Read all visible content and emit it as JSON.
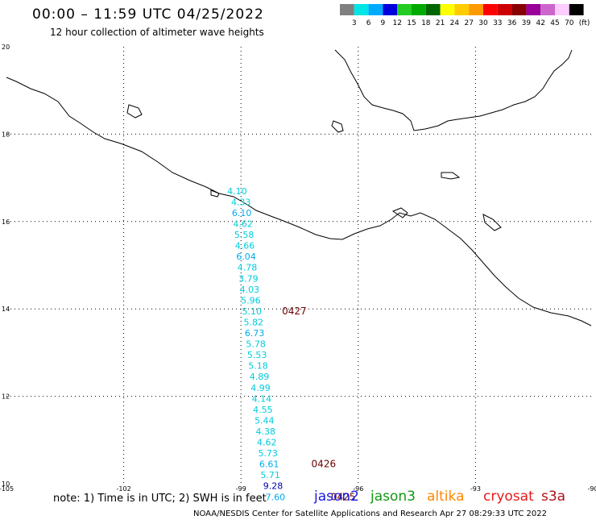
{
  "header": {
    "title": "00:00 – 11:59 UTC 04/25/2022",
    "subtitle": "12 hour collection of altimeter wave heights"
  },
  "colorbar": {
    "labels": [
      "3",
      "6",
      "9",
      "12",
      "15",
      "18",
      "21",
      "24",
      "27",
      "30",
      "33",
      "36",
      "39",
      "42",
      "45",
      "70"
    ],
    "unit": "(ft)",
    "colors": [
      "#808080",
      "#00e5e5",
      "#00aaff",
      "#0000dd",
      "#22cc22",
      "#00aa00",
      "#006600",
      "#ffff00",
      "#ffcc00",
      "#ff9900",
      "#ff0000",
      "#cc0000",
      "#880000",
      "#990099",
      "#cc66cc",
      "#ffccff",
      "#000000"
    ]
  },
  "map": {
    "lon_range": [
      -105,
      -90
    ],
    "lat_range": [
      10,
      20
    ],
    "lon_ticks": [
      {
        "value": -105,
        "label": "-105"
      },
      {
        "value": -102,
        "label": "-102"
      },
      {
        "value": -99,
        "label": "-99"
      },
      {
        "value": -96,
        "label": "-96"
      },
      {
        "value": -93,
        "label": "-93"
      },
      {
        "value": -90,
        "label": "-90"
      }
    ],
    "lat_ticks": [
      {
        "value": 20,
        "label": "20"
      },
      {
        "value": 18,
        "label": "18"
      },
      {
        "value": 16,
        "label": "16"
      },
      {
        "value": 14,
        "label": "14"
      },
      {
        "value": 12,
        "label": "12"
      },
      {
        "value": 10,
        "label": "10"
      }
    ],
    "grid": true,
    "coastline_color": "#000000"
  },
  "observations": [
    {
      "lon": -99.1,
      "lat": 16.7,
      "swh": "4.10"
    },
    {
      "lon": -99.0,
      "lat": 16.45,
      "swh": "4.33"
    },
    {
      "lon": -98.98,
      "lat": 16.2,
      "swh": "6.10"
    },
    {
      "lon": -98.95,
      "lat": 15.95,
      "swh": "4.62"
    },
    {
      "lon": -98.92,
      "lat": 15.7,
      "swh": "5.58"
    },
    {
      "lon": -98.9,
      "lat": 15.45,
      "swh": "4.66"
    },
    {
      "lon": -98.87,
      "lat": 15.2,
      "swh": "6.04"
    },
    {
      "lon": -98.84,
      "lat": 14.95,
      "swh": "4.78"
    },
    {
      "lon": -98.81,
      "lat": 14.7,
      "swh": "3.79"
    },
    {
      "lon": -98.78,
      "lat": 14.45,
      "swh": "4.03"
    },
    {
      "lon": -98.75,
      "lat": 14.2,
      "swh": "5.96"
    },
    {
      "lon": -98.72,
      "lat": 13.95,
      "swh": "5.10"
    },
    {
      "lon": -98.68,
      "lat": 13.7,
      "swh": "5.82"
    },
    {
      "lon": -98.65,
      "lat": 13.45,
      "swh": "6.73"
    },
    {
      "lon": -98.62,
      "lat": 13.2,
      "swh": "5.78"
    },
    {
      "lon": -98.59,
      "lat": 12.95,
      "swh": "5.53"
    },
    {
      "lon": -98.56,
      "lat": 12.7,
      "swh": "5.18"
    },
    {
      "lon": -98.53,
      "lat": 12.45,
      "swh": "4.89"
    },
    {
      "lon": -98.5,
      "lat": 12.2,
      "swh": "4.99"
    },
    {
      "lon": -98.47,
      "lat": 11.95,
      "swh": "4.14"
    },
    {
      "lon": -98.44,
      "lat": 11.7,
      "swh": "4.55"
    },
    {
      "lon": -98.4,
      "lat": 11.45,
      "swh": "5.44"
    },
    {
      "lon": -98.37,
      "lat": 11.2,
      "swh": "4.38"
    },
    {
      "lon": -98.34,
      "lat": 10.95,
      "swh": "4.62"
    },
    {
      "lon": -98.31,
      "lat": 10.7,
      "swh": "5.73"
    },
    {
      "lon": -98.28,
      "lat": 10.45,
      "swh": "6.61"
    },
    {
      "lon": -98.25,
      "lat": 10.2,
      "swh": "5.71"
    },
    {
      "lon": -98.18,
      "lat": 9.95,
      "swh": "9.28"
    },
    {
      "lon": -98.12,
      "lat": 9.7,
      "swh": "7.60"
    }
  ],
  "track_labels": [
    {
      "lon": -97.95,
      "lat": 13.95,
      "label": "0427"
    },
    {
      "lon": -97.2,
      "lat": 10.45,
      "label": "0426"
    },
    {
      "lon": -96.7,
      "lat": 9.7,
      "label": "0425"
    }
  ],
  "note": "note: 1) Time is in UTC; 2) SWH is in feet",
  "missions": [
    "jason2",
    "jason3",
    "altika",
    "cryosat",
    "s3a"
  ],
  "footer": "NOAA/NESDIS Center for Satellite Applications and Research   Apr 27 08:29:33 UTC 2022"
}
